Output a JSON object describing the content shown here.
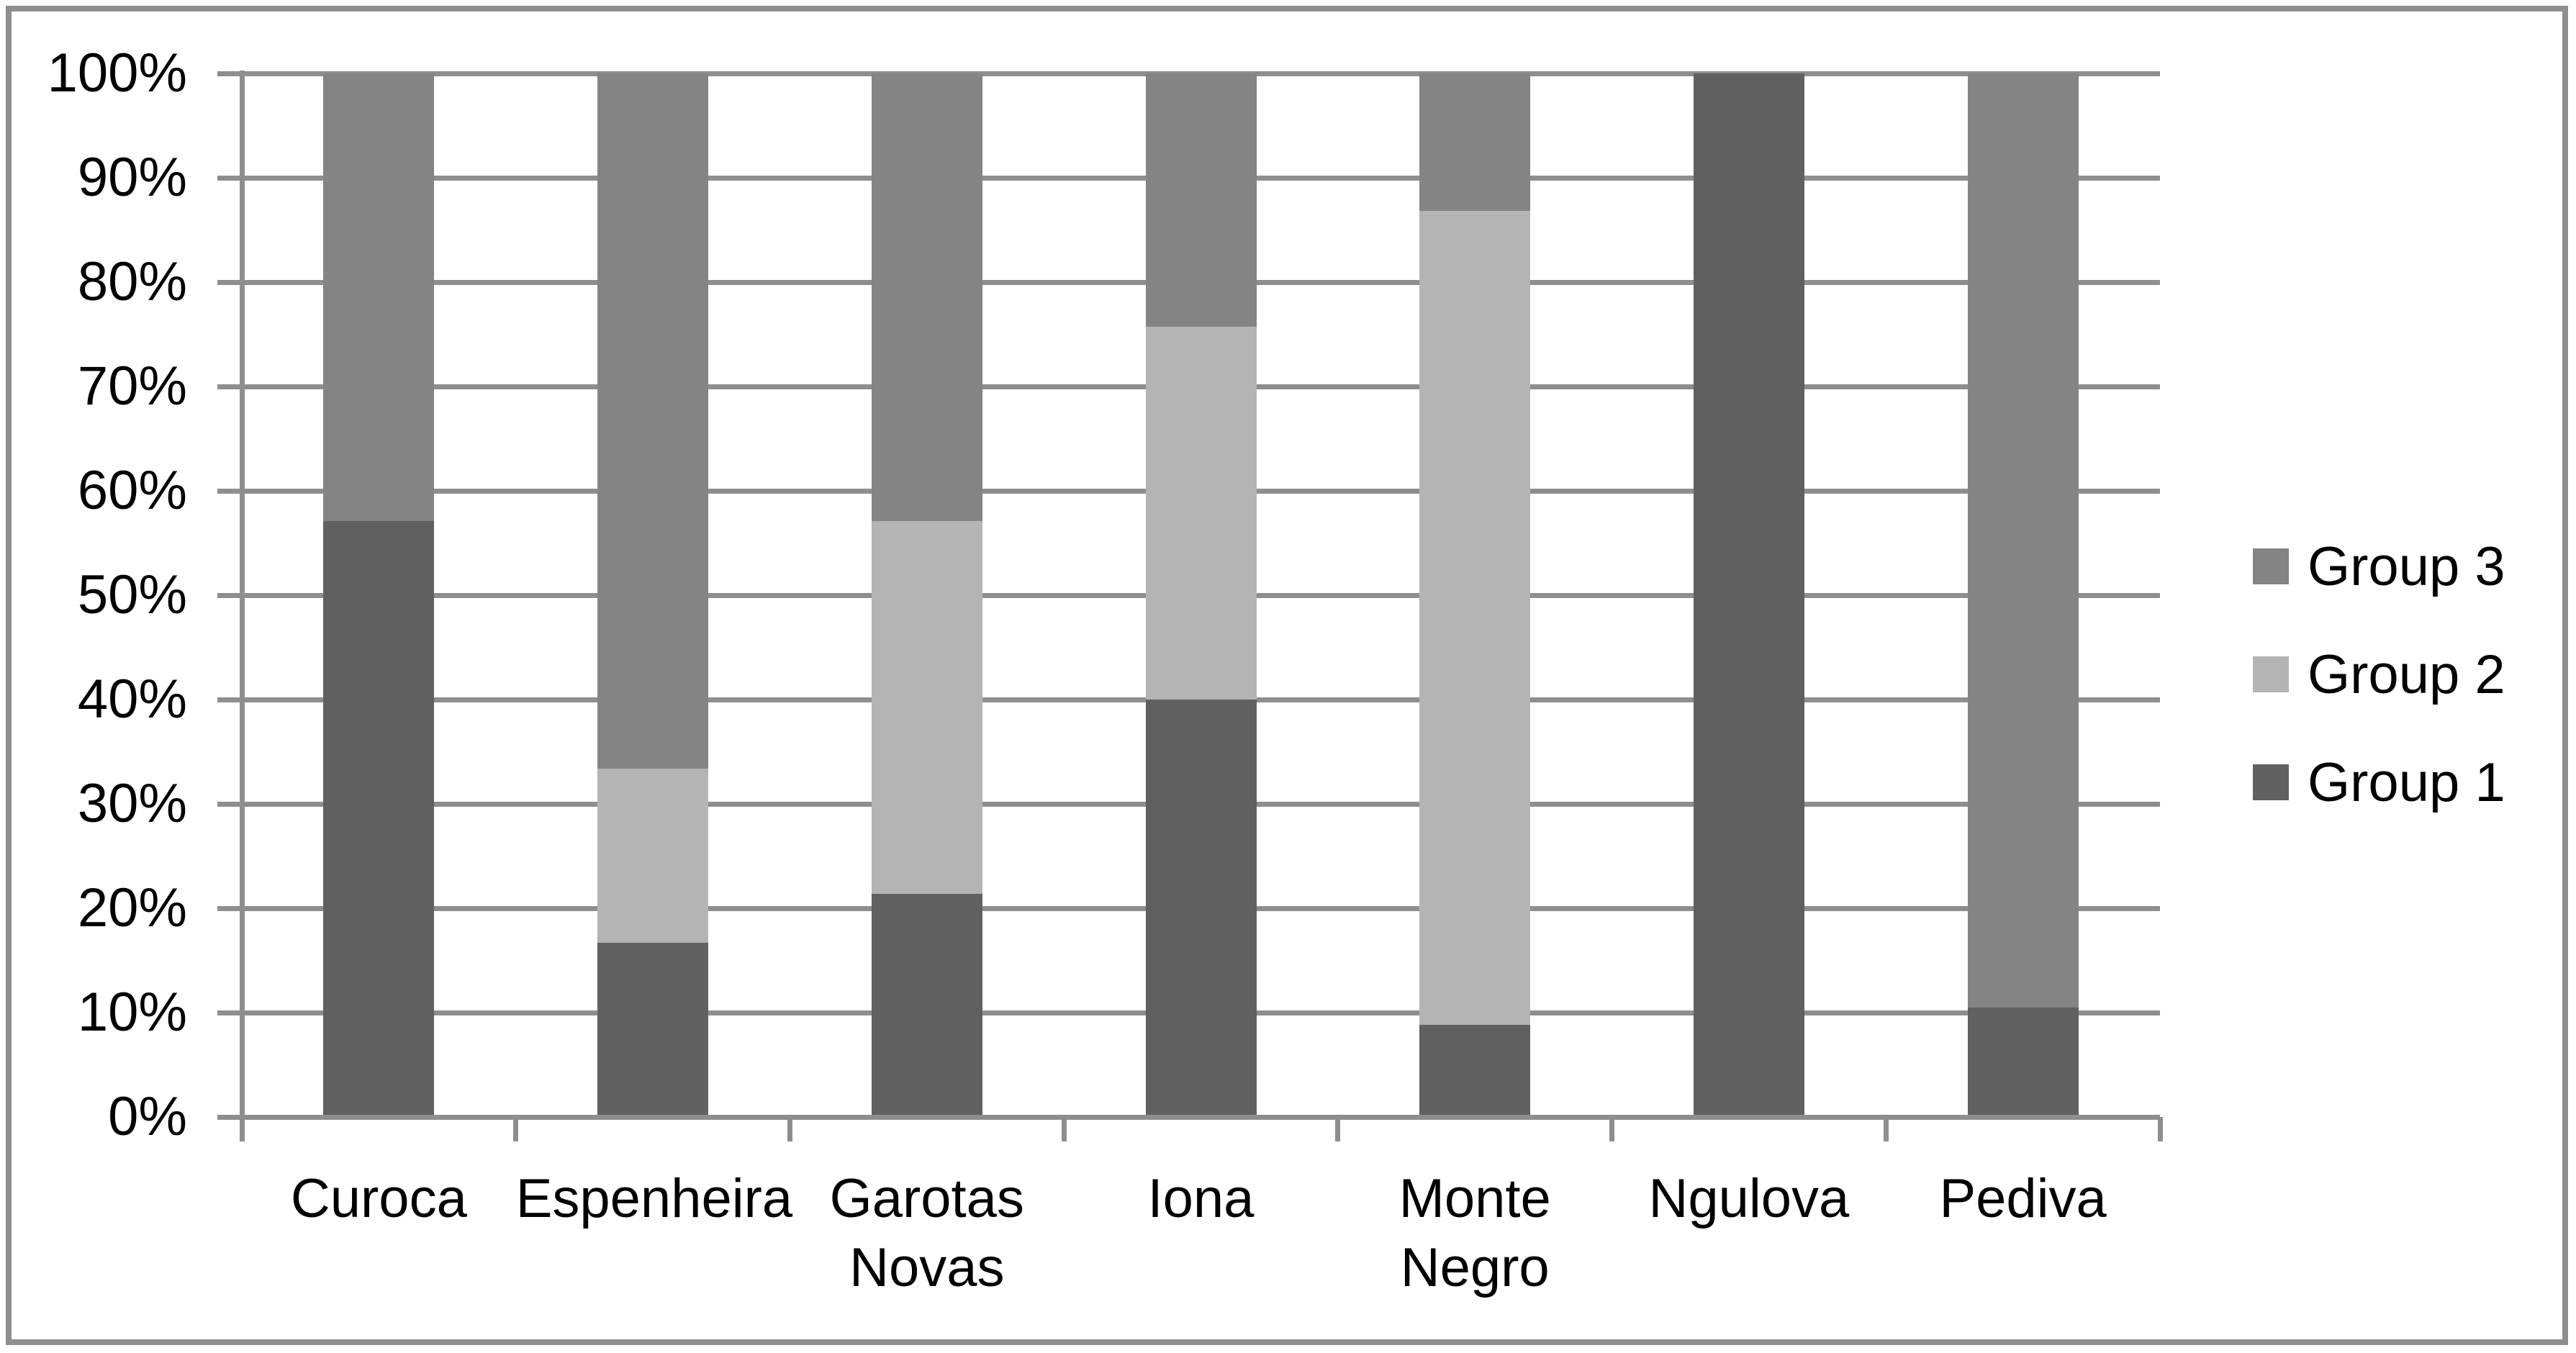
{
  "chart_data": {
    "type": "bar",
    "subtype": "stacked-100-percent",
    "title": "",
    "xlabel": "",
    "ylabel": "",
    "categories": [
      "Curoca",
      "Espenheira",
      "Garotas Novas",
      "Iona",
      "Monte Negro",
      "Ngulova",
      "Pediva"
    ],
    "series": [
      {
        "name": "Group 1",
        "color": "#606060",
        "values": [
          57.1,
          16.7,
          21.4,
          40.0,
          8.8,
          100.0,
          10.5
        ]
      },
      {
        "name": "Group 2",
        "color": "#b4b4b4",
        "values": [
          0.0,
          16.7,
          35.7,
          35.7,
          78.0,
          0.0,
          0.0
        ]
      },
      {
        "name": "Group 3",
        "color": "#848484",
        "values": [
          42.9,
          66.6,
          42.9,
          24.3,
          13.2,
          0.0,
          89.5
        ]
      }
    ],
    "y_axis": {
      "ticks": [
        "100%",
        "90%",
        "80%",
        "70%",
        "60%",
        "50%",
        "40%",
        "30%",
        "20%",
        "10%",
        "0%"
      ],
      "min": 0,
      "max": 100,
      "unit": "%"
    },
    "grid": true,
    "legend": {
      "position": "right",
      "entries": [
        "Group 3",
        "Group 2",
        "Group 1"
      ]
    }
  },
  "styles": {
    "grid_color": "#8e8e8e",
    "axis_color": "#8e8e8e",
    "border_color": "#8e8e8e",
    "background": "#ffffff",
    "text_color": "#000000"
  }
}
